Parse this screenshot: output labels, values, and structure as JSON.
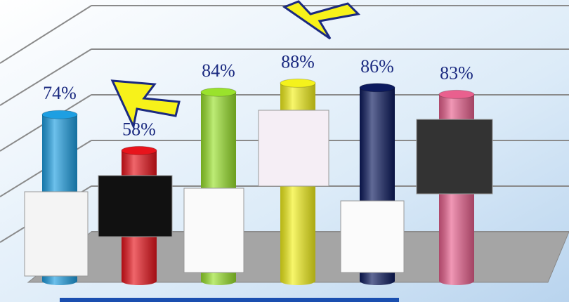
{
  "chart_data": {
    "type": "bar",
    "categories": [
      null,
      null,
      null,
      null,
      null,
      null
    ],
    "values": [
      74,
      58,
      84,
      88,
      86,
      83
    ],
    "value_labels": [
      "74%",
      "58%",
      "84%",
      "88%",
      "86%",
      "83%"
    ],
    "colors": [
      "#1e9fe2",
      "#e8141c",
      "#9ae22c",
      "#f4f21c",
      "#0c1a5e",
      "#e9608e"
    ],
    "ylim": [
      0,
      100
    ]
  }
}
